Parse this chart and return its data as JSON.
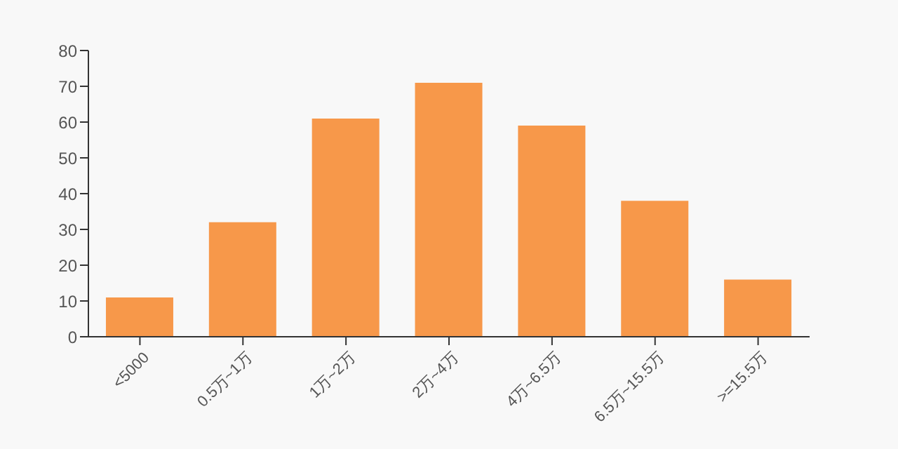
{
  "chart_data": {
    "type": "bar",
    "categories": [
      "<5000",
      "0.5万~1万",
      "1万~2万",
      "2万~4万",
      "4万~6.5万",
      "6.5万~15.5万",
      ">=15.5万"
    ],
    "values": [
      11,
      32,
      61,
      71,
      59,
      38,
      16
    ],
    "color": "#f7984a",
    "ylim": [
      0,
      80
    ],
    "yticks": [
      0,
      10,
      20,
      30,
      40,
      50,
      60,
      70,
      80
    ],
    "grid": false,
    "legend": false
  }
}
